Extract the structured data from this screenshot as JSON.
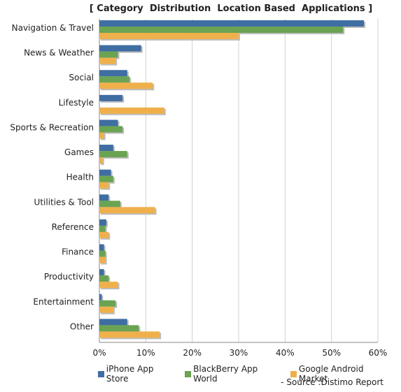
{
  "chart_data": {
    "type": "bar",
    "orientation": "horizontal",
    "title": "[ Category  Distribution  Location Based  Applications ]",
    "categories": [
      "Navigation & Travel",
      "News & Weather",
      "Social",
      "Lifestyle",
      "Sports & Recreation",
      "Games",
      "Health",
      "Utilities & Tool",
      "Reference",
      "Finance",
      "Productivity",
      "Entertainment",
      "Other"
    ],
    "series": [
      {
        "name": "iPhone App Store",
        "color": "#3f6ea3",
        "values": [
          57,
          9,
          6,
          5,
          4,
          3,
          2.5,
          2,
          1.5,
          1,
          1,
          0.5,
          6
        ]
      },
      {
        "name": "BlackBerry App World",
        "color": "#6aa352",
        "values": [
          52.5,
          4,
          6.5,
          0,
          5,
          6,
          3,
          4.5,
          1.3,
          1.3,
          2,
          3.5,
          8.5
        ]
      },
      {
        "name": "Google Android Market",
        "color": "#efb04c",
        "values": [
          30,
          3.5,
          11.5,
          14,
          1,
          0.7,
          2,
          12,
          2,
          1.3,
          4,
          3,
          13
        ]
      }
    ],
    "xlim": [
      0,
      60
    ],
    "x_ticks": [
      "0%",
      "10%",
      "20%",
      "30%",
      "40%",
      "50%",
      "60%"
    ],
    "grid": true,
    "legend_position": "bottom",
    "source": "- Source :Distimo Report"
  }
}
